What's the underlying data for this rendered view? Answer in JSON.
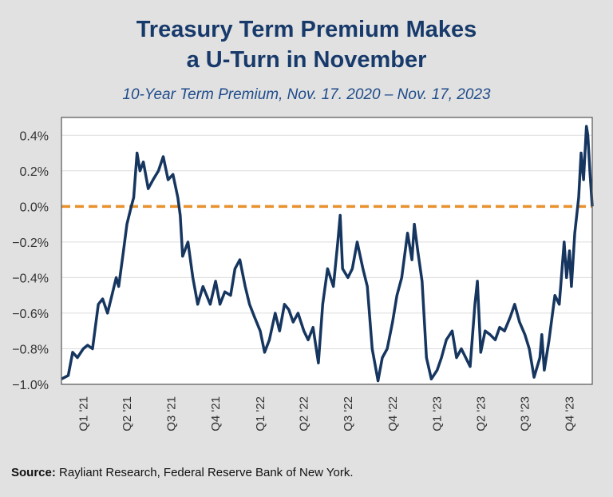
{
  "chart_data": {
    "type": "line",
    "title": "Treasury Term Premium Makes a U-Turn in November",
    "title_lines": [
      "Treasury Term Premium Makes",
      "a U-Turn in November"
    ],
    "subtitle": "10-Year Term Premium, Nov. 17. 2020 – Nov. 17, 2023",
    "xlabel": "",
    "ylabel": "",
    "xlim": [
      "2020-11-17",
      "2023-11-17"
    ],
    "ylim": [
      -1.0,
      0.5
    ],
    "yticks": [
      0.4,
      0.2,
      0.0,
      -0.2,
      -0.4,
      -0.6,
      -0.8,
      -1.0
    ],
    "ytick_labels": [
      "0.4%",
      "0.2%",
      "0.0%",
      "−0.2%",
      "−0.4%",
      "−0.6%",
      "−0.8%",
      "−1.0%"
    ],
    "xticks": [
      "2021-01-01",
      "2021-04-01",
      "2021-07-01",
      "2021-10-01",
      "2022-01-01",
      "2022-04-01",
      "2022-07-01",
      "2022-10-01",
      "2023-01-01",
      "2023-04-01",
      "2023-07-01",
      "2023-10-01"
    ],
    "xtick_labels": [
      "Q1 '21",
      "Q2 '21",
      "Q3 '21",
      "Q4 '21",
      "Q1 '22",
      "Q2 '22",
      "Q3 '22",
      "Q4 '22",
      "Q1 '23",
      "Q2 '23",
      "Q3 '23",
      "Q4 '23"
    ],
    "grid": "horizontal",
    "line_color": "#163660",
    "reference_line": {
      "y": 0.0,
      "style": "dashed",
      "color": "#e8922f"
    },
    "series": [
      {
        "x": [
          "2020-11-17",
          "2020-12-01",
          "2020-12-10",
          "2020-12-20",
          "2021-01-01",
          "2021-01-10",
          "2021-01-20",
          "2021-02-01",
          "2021-02-10",
          "2021-02-20",
          "2021-03-01",
          "2021-03-10",
          "2021-03-15",
          "2021-03-25",
          "2021-04-01",
          "2021-04-10",
          "2021-04-15",
          "2021-04-22",
          "2021-04-28",
          "2021-05-05",
          "2021-05-15",
          "2021-05-25",
          "2021-06-05",
          "2021-06-15",
          "2021-06-25",
          "2021-07-05",
          "2021-07-15",
          "2021-07-20",
          "2021-07-25",
          "2021-08-05",
          "2021-08-15",
          "2021-08-25",
          "2021-09-05",
          "2021-09-20",
          "2021-10-01",
          "2021-10-10",
          "2021-10-20",
          "2021-11-01",
          "2021-11-10",
          "2021-11-20",
          "2021-12-01",
          "2021-12-10",
          "2021-12-20",
          "2022-01-01",
          "2022-01-10",
          "2022-01-20",
          "2022-02-01",
          "2022-02-10",
          "2022-02-20",
          "2022-03-01",
          "2022-03-10",
          "2022-03-20",
          "2022-04-01",
          "2022-04-10",
          "2022-04-20",
          "2022-05-01",
          "2022-05-10",
          "2022-05-20",
          "2022-06-01",
          "2022-06-10",
          "2022-06-15",
          "2022-06-20",
          "2022-07-01",
          "2022-07-10",
          "2022-07-20",
          "2022-08-01",
          "2022-08-10",
          "2022-08-20",
          "2022-09-01",
          "2022-09-10",
          "2022-09-20",
          "2022-10-01",
          "2022-10-10",
          "2022-10-20",
          "2022-11-01",
          "2022-11-10",
          "2022-11-15",
          "2022-11-22",
          "2022-12-01",
          "2022-12-10",
          "2022-12-20",
          "2023-01-01",
          "2023-01-10",
          "2023-01-20",
          "2023-02-01",
          "2023-02-10",
          "2023-02-20",
          "2023-03-01",
          "2023-03-10",
          "2023-03-20",
          "2023-03-25",
          "2023-04-01",
          "2023-04-10",
          "2023-04-20",
          "2023-05-01",
          "2023-05-10",
          "2023-05-20",
          "2023-06-01",
          "2023-06-10",
          "2023-06-20",
          "2023-07-01",
          "2023-07-10",
          "2023-07-20",
          "2023-08-01",
          "2023-08-05",
          "2023-08-10",
          "2023-08-20",
          "2023-09-01",
          "2023-09-10",
          "2023-09-20",
          "2023-09-25",
          "2023-10-01",
          "2023-10-05",
          "2023-10-12",
          "2023-10-20",
          "2023-10-25",
          "2023-10-30",
          "2023-11-01",
          "2023-11-05",
          "2023-11-08",
          "2023-11-12",
          "2023-11-17"
        ],
        "values": [
          -0.97,
          -0.95,
          -0.82,
          -0.85,
          -0.8,
          -0.78,
          -0.8,
          -0.55,
          -0.52,
          -0.6,
          -0.5,
          -0.4,
          -0.45,
          -0.25,
          -0.1,
          0.0,
          0.05,
          0.3,
          0.2,
          0.25,
          0.1,
          0.15,
          0.2,
          0.28,
          0.15,
          0.18,
          0.05,
          -0.05,
          -0.28,
          -0.2,
          -0.4,
          -0.55,
          -0.45,
          -0.55,
          -0.42,
          -0.55,
          -0.48,
          -0.5,
          -0.35,
          -0.3,
          -0.45,
          -0.55,
          -0.62,
          -0.7,
          -0.82,
          -0.75,
          -0.6,
          -0.7,
          -0.55,
          -0.58,
          -0.65,
          -0.6,
          -0.7,
          -0.75,
          -0.68,
          -0.88,
          -0.55,
          -0.35,
          -0.45,
          -0.2,
          -0.05,
          -0.35,
          -0.4,
          -0.35,
          -0.2,
          -0.35,
          -0.45,
          -0.8,
          -0.98,
          -0.85,
          -0.8,
          -0.65,
          -0.5,
          -0.4,
          -0.15,
          -0.3,
          -0.1,
          -0.25,
          -0.42,
          -0.85,
          -0.97,
          -0.92,
          -0.85,
          -0.75,
          -0.7,
          -0.85,
          -0.8,
          -0.85,
          -0.9,
          -0.55,
          -0.42,
          -0.82,
          -0.7,
          -0.72,
          -0.75,
          -0.68,
          -0.7,
          -0.62,
          -0.55,
          -0.65,
          -0.72,
          -0.8,
          -0.96,
          -0.85,
          -0.72,
          -0.92,
          -0.75,
          -0.5,
          -0.55,
          -0.2,
          -0.4,
          -0.25,
          -0.45,
          -0.15,
          0.05,
          0.3,
          0.15,
          0.25,
          0.45,
          0.4,
          0.2,
          0.0
        ]
      }
    ]
  },
  "source": {
    "label": "Source:",
    "text": " Rayliant Research, Federal Reserve Bank of New York."
  }
}
